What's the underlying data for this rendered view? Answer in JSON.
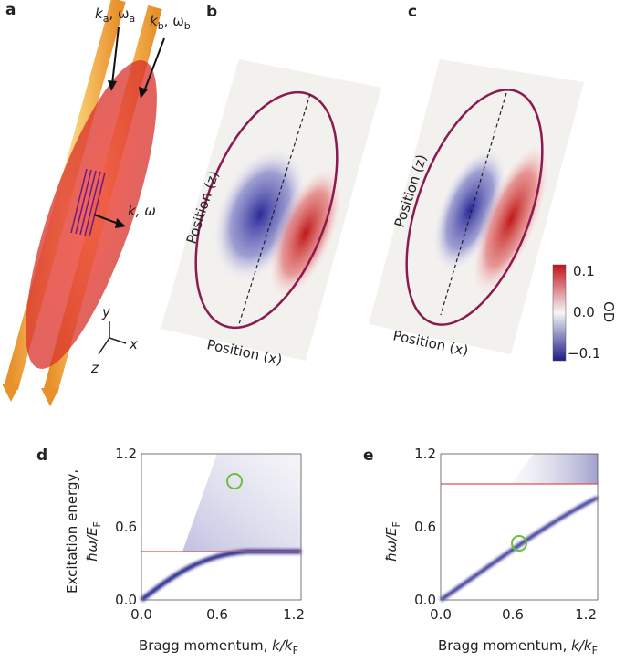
{
  "panel_a": {
    "letter": "a",
    "beam_a": [
      "k",
      "a",
      ", ω",
      "a"
    ],
    "beam_b": [
      "k",
      "b",
      ", ω",
      "b"
    ],
    "probe": "k, ω",
    "axes": [
      "y",
      "x",
      "z"
    ]
  },
  "panel_b": {
    "letter": "b",
    "ylabel": "Position (z)",
    "xlabel": "Position (x)"
  },
  "panel_c": {
    "letter": "c",
    "ylabel": "Position (z)",
    "xlabel": "Position (x)"
  },
  "colorbar": {
    "ticks": [
      "0.1",
      "0.0",
      "−0.1"
    ],
    "label": "OD"
  },
  "panel_d": {
    "letter": "d",
    "ylabel_top": "Excitation energy,",
    "ylabel": [
      "ħω/E",
      "F"
    ],
    "xlabel": [
      "Bragg momentum, ",
      "k/k",
      "F"
    ],
    "xticks": [
      "0.0",
      "0.6",
      "1.2"
    ],
    "yticks": [
      "0.0",
      "0.6",
      "1.2"
    ]
  },
  "panel_e": {
    "letter": "e",
    "ylabel": [
      "ħω/E",
      "F"
    ],
    "xlabel": [
      "Bragg momentum, ",
      "k/k",
      "F"
    ],
    "xticks": [
      "0.0",
      "0.6",
      "1.2"
    ],
    "yticks": [
      "0.0",
      "0.6",
      "1.2"
    ]
  }
}
